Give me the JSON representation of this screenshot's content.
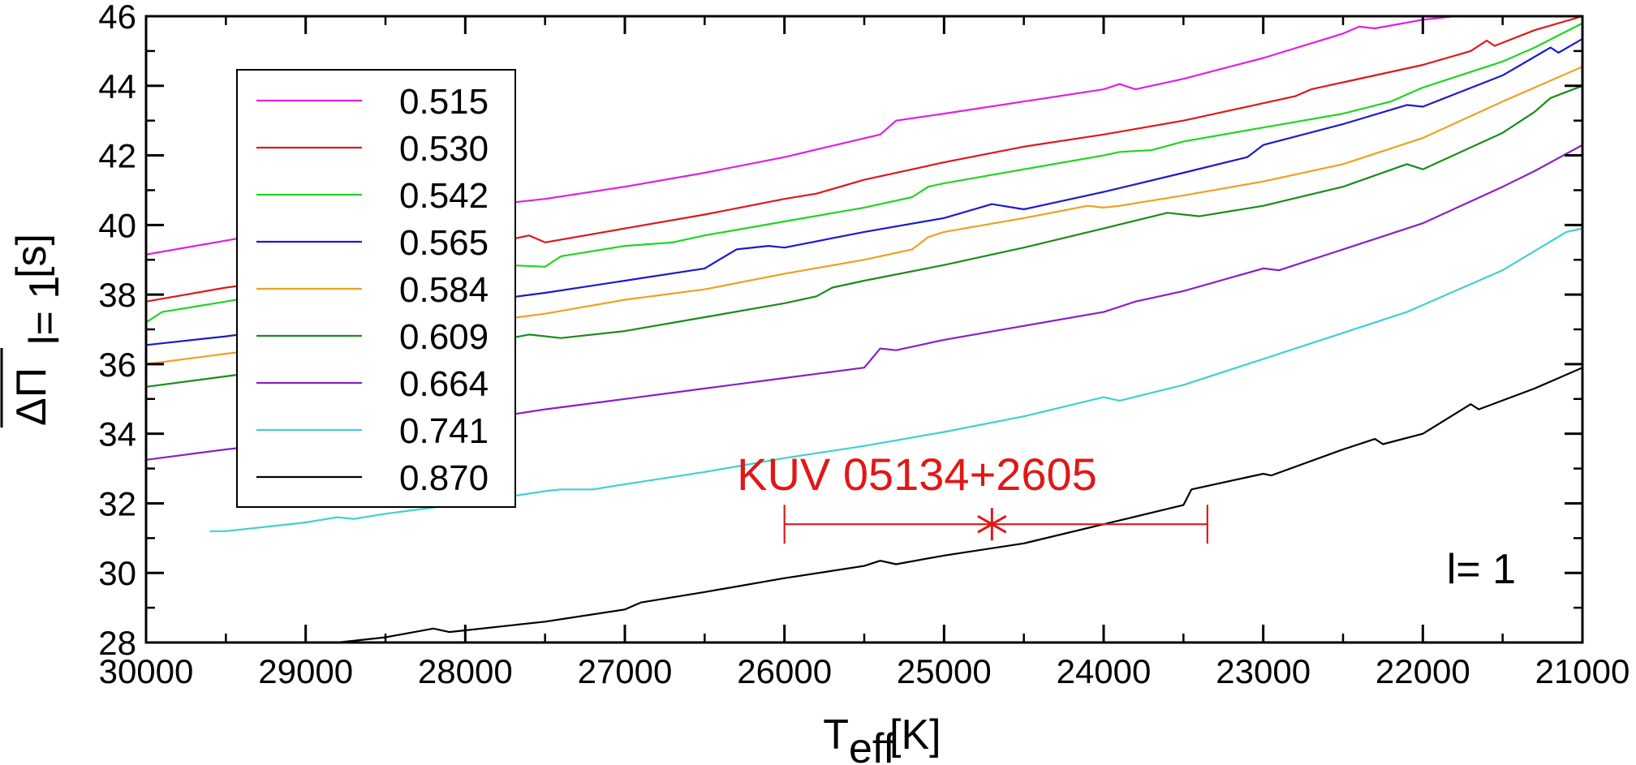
{
  "chart_data": {
    "type": "line",
    "xlabel": "T",
    "xlabel_sub": "eff",
    "xlabel_unit": "[K]",
    "ylabel_symbol": "ΔΠ",
    "ylabel_sub": "l= 1",
    "ylabel_unit": "[s]",
    "xlim": [
      30000,
      21000
    ],
    "ylim": [
      28,
      46
    ],
    "x_reversed": true,
    "x_ticks": [
      30000,
      29000,
      28000,
      27000,
      26000,
      25000,
      24000,
      23000,
      22000,
      21000
    ],
    "y_ticks": [
      28,
      30,
      32,
      34,
      36,
      38,
      40,
      42,
      44,
      46
    ],
    "legend_position": "top-left",
    "grid": false,
    "series": [
      {
        "name": "0.515",
        "color": "#e020e0",
        "points": [
          [
            30000,
            39.15
          ],
          [
            29500,
            39.55
          ],
          [
            29000,
            39.95
          ],
          [
            28500,
            40.25
          ],
          [
            28000,
            40.5
          ],
          [
            27500,
            40.75
          ],
          [
            27000,
            41.1
          ],
          [
            26500,
            41.5
          ],
          [
            26000,
            41.95
          ],
          [
            25400,
            42.6
          ],
          [
            25300,
            43.0
          ],
          [
            25000,
            43.2
          ],
          [
            24500,
            43.55
          ],
          [
            24000,
            43.9
          ],
          [
            23900,
            44.05
          ],
          [
            23800,
            43.9
          ],
          [
            23500,
            44.2
          ],
          [
            23000,
            44.8
          ],
          [
            22500,
            45.5
          ],
          [
            22400,
            45.7
          ],
          [
            22300,
            45.65
          ],
          [
            22000,
            45.9
          ],
          [
            21800,
            46.0
          ]
        ]
      },
      {
        "name": "0.530",
        "color": "#e01818",
        "points": [
          [
            30000,
            37.8
          ],
          [
            29500,
            38.2
          ],
          [
            29000,
            38.5
          ],
          [
            28500,
            38.9
          ],
          [
            28000,
            39.3
          ],
          [
            27600,
            39.7
          ],
          [
            27500,
            39.5
          ],
          [
            27000,
            39.9
          ],
          [
            26500,
            40.3
          ],
          [
            26000,
            40.75
          ],
          [
            25800,
            40.9
          ],
          [
            25500,
            41.3
          ],
          [
            25000,
            41.8
          ],
          [
            24500,
            42.25
          ],
          [
            24000,
            42.6
          ],
          [
            23500,
            43.0
          ],
          [
            23000,
            43.5
          ],
          [
            22800,
            43.7
          ],
          [
            22700,
            43.9
          ],
          [
            22500,
            44.1
          ],
          [
            22000,
            44.6
          ],
          [
            21700,
            45.0
          ],
          [
            21600,
            45.3
          ],
          [
            21550,
            45.15
          ],
          [
            21300,
            45.6
          ],
          [
            21000,
            46.0
          ]
        ]
      },
      {
        "name": "0.542",
        "color": "#22d422",
        "points": [
          [
            30000,
            37.2
          ],
          [
            29900,
            37.5
          ],
          [
            29500,
            37.8
          ],
          [
            29000,
            38.2
          ],
          [
            28500,
            38.55
          ],
          [
            28000,
            38.9
          ],
          [
            27500,
            38.8
          ],
          [
            27400,
            39.1
          ],
          [
            27000,
            39.4
          ],
          [
            26700,
            39.5
          ],
          [
            26500,
            39.7
          ],
          [
            26000,
            40.1
          ],
          [
            25500,
            40.5
          ],
          [
            25200,
            40.8
          ],
          [
            25100,
            41.1
          ],
          [
            25000,
            41.2
          ],
          [
            24500,
            41.6
          ],
          [
            24000,
            42.0
          ],
          [
            23900,
            42.1
          ],
          [
            23700,
            42.15
          ],
          [
            23500,
            42.4
          ],
          [
            23000,
            42.8
          ],
          [
            22500,
            43.2
          ],
          [
            22200,
            43.55
          ],
          [
            22000,
            43.95
          ],
          [
            21500,
            44.7
          ],
          [
            21300,
            45.1
          ],
          [
            21000,
            45.8
          ]
        ]
      },
      {
        "name": "0.565",
        "color": "#1a1ad0",
        "points": [
          [
            30000,
            36.55
          ],
          [
            29500,
            36.8
          ],
          [
            29000,
            37.1
          ],
          [
            28500,
            37.4
          ],
          [
            28000,
            37.75
          ],
          [
            27500,
            38.05
          ],
          [
            27000,
            38.4
          ],
          [
            26500,
            38.75
          ],
          [
            26300,
            39.3
          ],
          [
            26100,
            39.4
          ],
          [
            26000,
            39.35
          ],
          [
            25500,
            39.8
          ],
          [
            25000,
            40.2
          ],
          [
            24700,
            40.6
          ],
          [
            24500,
            40.45
          ],
          [
            24000,
            40.95
          ],
          [
            23500,
            41.5
          ],
          [
            23100,
            41.95
          ],
          [
            23000,
            42.3
          ],
          [
            22500,
            42.9
          ],
          [
            22100,
            43.45
          ],
          [
            22000,
            43.4
          ],
          [
            21500,
            44.3
          ],
          [
            21200,
            45.1
          ],
          [
            21150,
            44.95
          ],
          [
            21000,
            45.35
          ]
        ]
      },
      {
        "name": "0.584",
        "color": "#f0a020",
        "points": [
          [
            30000,
            36.0
          ],
          [
            29500,
            36.3
          ],
          [
            29000,
            36.55
          ],
          [
            28500,
            36.9
          ],
          [
            28000,
            37.15
          ],
          [
            27500,
            37.45
          ],
          [
            27000,
            37.85
          ],
          [
            26500,
            38.15
          ],
          [
            26000,
            38.6
          ],
          [
            25500,
            39.0
          ],
          [
            25200,
            39.3
          ],
          [
            25100,
            39.65
          ],
          [
            25000,
            39.8
          ],
          [
            24500,
            40.2
          ],
          [
            24100,
            40.55
          ],
          [
            24000,
            40.5
          ],
          [
            23900,
            40.55
          ],
          [
            23500,
            40.85
          ],
          [
            23000,
            41.25
          ],
          [
            22500,
            41.75
          ],
          [
            22000,
            42.5
          ],
          [
            21500,
            43.55
          ],
          [
            21000,
            44.55
          ]
        ]
      },
      {
        "name": "0.609",
        "color": "#1a8c1a",
        "points": [
          [
            30000,
            35.35
          ],
          [
            29500,
            35.65
          ],
          [
            29000,
            35.95
          ],
          [
            28500,
            36.25
          ],
          [
            28000,
            36.5
          ],
          [
            27600,
            36.85
          ],
          [
            27400,
            36.75
          ],
          [
            27000,
            36.95
          ],
          [
            26500,
            37.35
          ],
          [
            26000,
            37.75
          ],
          [
            25800,
            37.95
          ],
          [
            25700,
            38.2
          ],
          [
            25500,
            38.4
          ],
          [
            25000,
            38.85
          ],
          [
            24500,
            39.35
          ],
          [
            24000,
            39.9
          ],
          [
            23600,
            40.35
          ],
          [
            23400,
            40.25
          ],
          [
            23000,
            40.55
          ],
          [
            22500,
            41.1
          ],
          [
            22100,
            41.75
          ],
          [
            22000,
            41.6
          ],
          [
            21500,
            42.65
          ],
          [
            21300,
            43.25
          ],
          [
            21200,
            43.65
          ],
          [
            21000,
            44.0
          ]
        ]
      },
      {
        "name": "0.664",
        "color": "#8820c8",
        "points": [
          [
            30000,
            33.25
          ],
          [
            29500,
            33.55
          ],
          [
            29000,
            33.8
          ],
          [
            28500,
            34.05
          ],
          [
            28000,
            34.35
          ],
          [
            27500,
            34.7
          ],
          [
            27000,
            35.0
          ],
          [
            26500,
            35.3
          ],
          [
            26000,
            35.6
          ],
          [
            25500,
            35.9
          ],
          [
            25400,
            36.45
          ],
          [
            25300,
            36.4
          ],
          [
            25000,
            36.7
          ],
          [
            24500,
            37.1
          ],
          [
            24000,
            37.5
          ],
          [
            23800,
            37.8
          ],
          [
            23500,
            38.1
          ],
          [
            23000,
            38.75
          ],
          [
            22900,
            38.7
          ],
          [
            22500,
            39.3
          ],
          [
            22000,
            40.05
          ],
          [
            21500,
            41.1
          ],
          [
            21300,
            41.55
          ],
          [
            21000,
            42.3
          ]
        ]
      },
      {
        "name": "0.741",
        "color": "#40d0d0",
        "points": [
          [
            29600,
            31.2
          ],
          [
            29500,
            31.2
          ],
          [
            29000,
            31.45
          ],
          [
            28800,
            31.6
          ],
          [
            28700,
            31.55
          ],
          [
            28500,
            31.7
          ],
          [
            28000,
            32.0
          ],
          [
            27500,
            32.35
          ],
          [
            27400,
            32.4
          ],
          [
            27200,
            32.4
          ],
          [
            27000,
            32.55
          ],
          [
            26500,
            32.9
          ],
          [
            26000,
            33.3
          ],
          [
            25500,
            33.65
          ],
          [
            25000,
            34.05
          ],
          [
            24500,
            34.5
          ],
          [
            24000,
            35.05
          ],
          [
            23900,
            34.95
          ],
          [
            23500,
            35.4
          ],
          [
            23000,
            36.15
          ],
          [
            22500,
            36.9
          ],
          [
            22100,
            37.5
          ],
          [
            22000,
            37.7
          ],
          [
            21500,
            38.7
          ],
          [
            21100,
            39.8
          ],
          [
            21000,
            39.9
          ]
        ]
      },
      {
        "name": "0.870",
        "color": "#000000",
        "points": [
          [
            28800,
            28.0
          ],
          [
            28500,
            28.15
          ],
          [
            28200,
            28.4
          ],
          [
            28100,
            28.3
          ],
          [
            28000,
            28.35
          ],
          [
            27500,
            28.6
          ],
          [
            27000,
            28.95
          ],
          [
            26900,
            29.15
          ],
          [
            26500,
            29.45
          ],
          [
            26000,
            29.85
          ],
          [
            25500,
            30.2
          ],
          [
            25400,
            30.35
          ],
          [
            25300,
            30.25
          ],
          [
            25000,
            30.5
          ],
          [
            24500,
            30.85
          ],
          [
            24000,
            31.4
          ],
          [
            23500,
            31.95
          ],
          [
            23450,
            32.4
          ],
          [
            23000,
            32.85
          ],
          [
            22950,
            32.8
          ],
          [
            22500,
            33.55
          ],
          [
            22300,
            33.85
          ],
          [
            22250,
            33.7
          ],
          [
            22000,
            34.0
          ],
          [
            21700,
            34.85
          ],
          [
            21650,
            34.7
          ],
          [
            21300,
            35.3
          ],
          [
            21000,
            35.9
          ]
        ]
      }
    ],
    "annotations": [
      {
        "text": "KUV 05134+2605",
        "color": "#e01818"
      },
      {
        "text": "l= 1",
        "color": "#000000"
      }
    ],
    "observed_point": {
      "x": 24700,
      "y": 31.4,
      "xerr_low": 23350,
      "xerr_high": 26000,
      "color": "#e01818"
    }
  }
}
